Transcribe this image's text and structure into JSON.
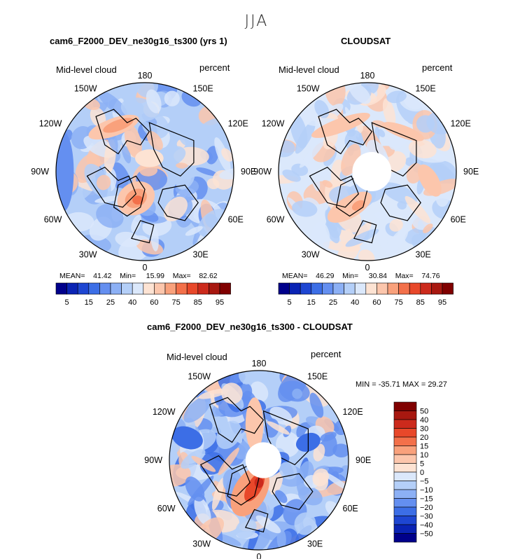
{
  "figure": {
    "suptitle": "JJA"
  },
  "colors": {
    "scale": [
      "#00008b",
      "#0a23b4",
      "#1e46d2",
      "#3c6ee6",
      "#648ff0",
      "#8cb0f5",
      "#b4cff8",
      "#dbe8fb",
      "#fde3d3",
      "#fcc6ac",
      "#f9a17c",
      "#f3704a",
      "#e8482a",
      "#cc2a1c",
      "#a81810",
      "#800000"
    ],
    "diff_scale": [
      "#00008b",
      "#0a23b4",
      "#1e46d2",
      "#3c6ee6",
      "#648ff0",
      "#8cb0f5",
      "#b4cff8",
      "#dbe8fb",
      "#fde3d3",
      "#fcc6ac",
      "#f9a17c",
      "#f3704a",
      "#e8482a",
      "#cc2a1c",
      "#a81810",
      "#800000"
    ]
  },
  "chart_data": [
    {
      "type": "heatmap",
      "projection": "north polar stereographic",
      "title": "cam6_F2000_DEV_ne30g16_ts300 (yrs 1)",
      "variable": "Mid-level cloud",
      "units": "percent",
      "lon_labels": [
        "180",
        "150E",
        "120E",
        "90E",
        "60E",
        "30E",
        "0",
        "30W",
        "60W",
        "90W",
        "120W",
        "150W"
      ],
      "stats": {
        "mean_label": "MEAN=",
        "mean": "41.42",
        "min_label": "Min=",
        "min": "15.99",
        "max_label": "Max=",
        "max": "82.62"
      },
      "colorbar_ticks": [
        "5",
        "15",
        "25",
        "40",
        "60",
        "75",
        "85",
        "95"
      ]
    },
    {
      "type": "heatmap",
      "projection": "north polar stereographic",
      "title": "CLOUDSAT",
      "variable": "Mid-level cloud",
      "units": "percent",
      "lon_labels": [
        "180",
        "150E",
        "120E",
        "90E",
        "60E",
        "30E",
        "0",
        "30W",
        "60W",
        "90W",
        "120W",
        "150W"
      ],
      "stats": {
        "mean_label": "MEAN=",
        "mean": "46.29",
        "min_label": "Min=",
        "min": "30.84",
        "max_label": "Max=",
        "max": "74.76"
      },
      "colorbar_ticks": [
        "5",
        "15",
        "25",
        "40",
        "60",
        "75",
        "85",
        "95"
      ]
    },
    {
      "type": "heatmap",
      "projection": "north polar stereographic",
      "title": "cam6_F2000_DEV_ne30g16_ts300 - CLOUDSAT",
      "variable": "Mid-level cloud",
      "units": "percent",
      "lon_labels": [
        "180",
        "150E",
        "120E",
        "90E",
        "60E",
        "30E",
        "0",
        "30W",
        "60W",
        "90W",
        "120W",
        "150W"
      ],
      "stats_text": "MIN = -35.71 MAX =   29.27",
      "colorbar_ticks": [
        "50",
        "40",
        "30",
        "20",
        "15",
        "10",
        "5",
        "0",
        "−5",
        "−10",
        "−15",
        "−20",
        "−30",
        "−40",
        "−50"
      ]
    }
  ]
}
